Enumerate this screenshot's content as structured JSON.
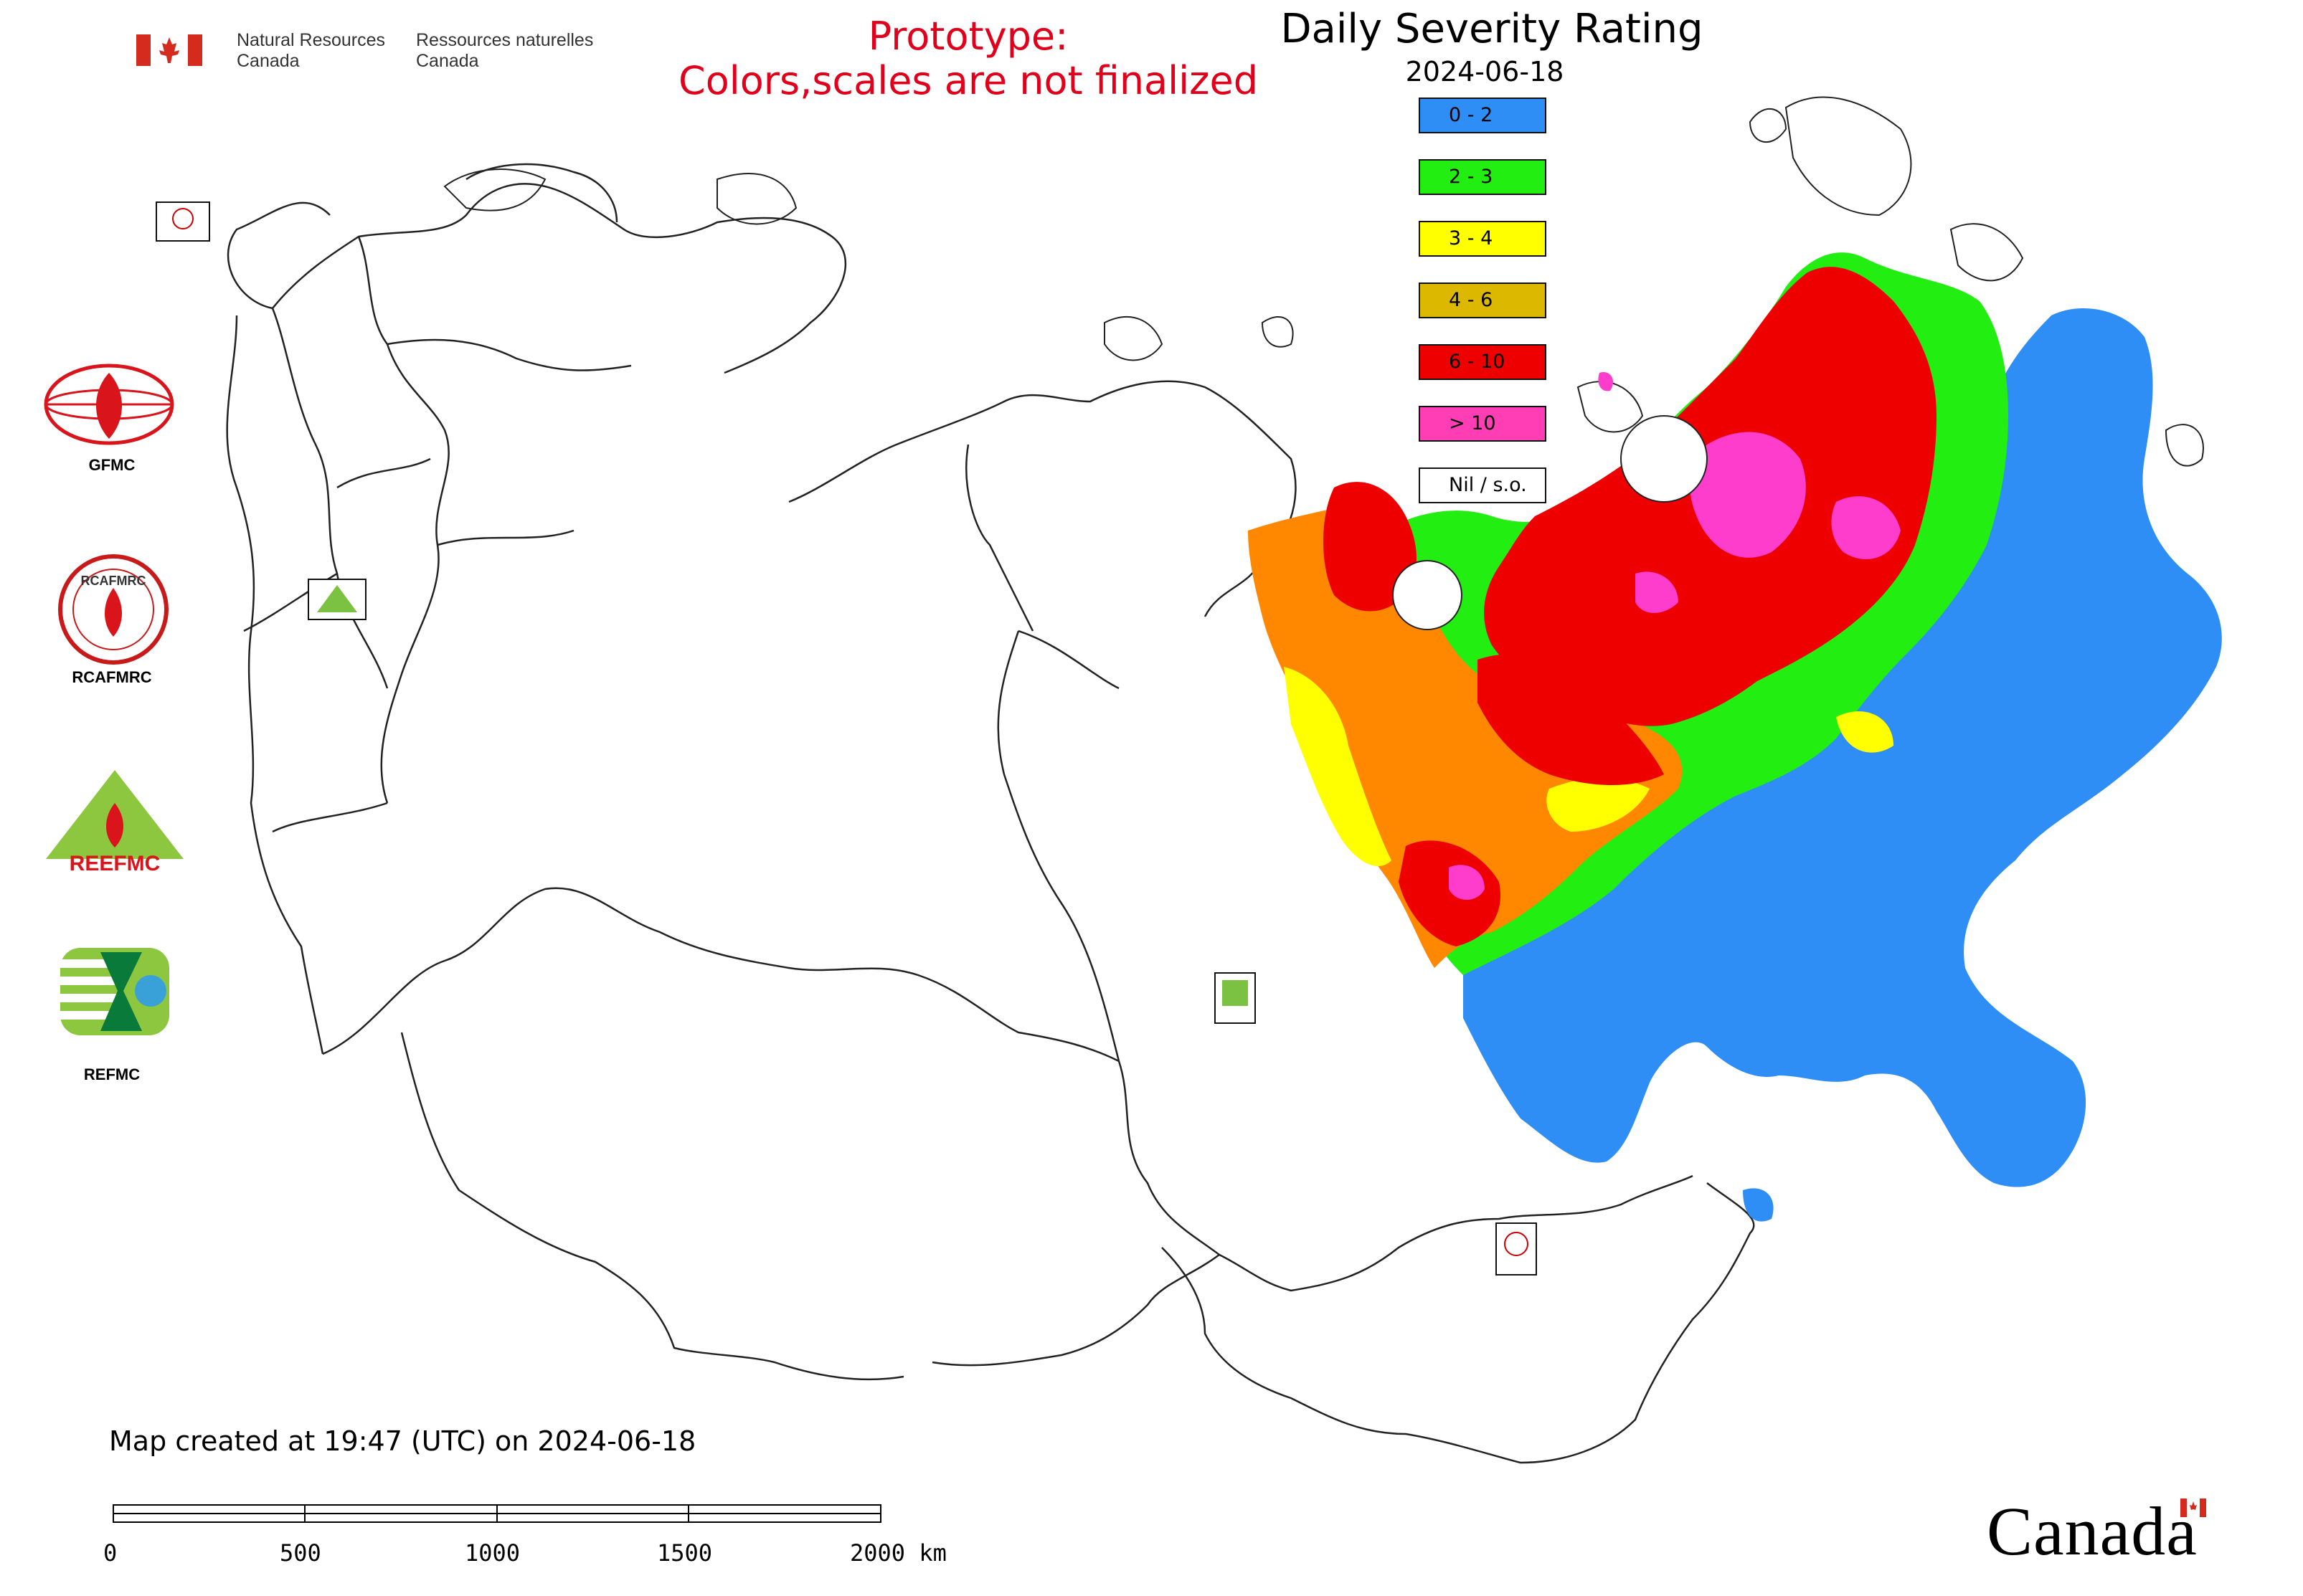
{
  "header": {
    "dept_en": [
      "Natural Resources",
      "Canada"
    ],
    "dept_fr": [
      "Ressources naturelles",
      "Canada"
    ],
    "prototype_line1": "Prototype:",
    "prototype_line2": "Colors,scales are not finalized"
  },
  "map": {
    "title": "Daily Severity Rating",
    "date": "2024-06-18",
    "legend": [
      {
        "label": "0 - 2",
        "color": "#2e8ef5"
      },
      {
        "label": "2 - 3",
        "color": "#22ee11"
      },
      {
        "label": "3 - 4",
        "color": "#ffff00"
      },
      {
        "label": "4 - 6",
        "color": "#ddb800"
      },
      {
        "label": "6 - 10",
        "color": "#ee0000"
      },
      {
        "label": "> 10",
        "color": "#ff3db4"
      },
      {
        "label": "Nil / s.o.",
        "color": "#ffffff"
      }
    ],
    "fill_colors": {
      "orange": "#ff8800",
      "red": "#ee0000",
      "magenta": "#ff3dcc",
      "yellow": "#ffff00",
      "green": "#22ee11",
      "blue": "#2e8ef5"
    }
  },
  "side_logos": [
    {
      "label": "GFMC"
    },
    {
      "label": "RCAFMRC"
    },
    {
      "label": "REFMC"
    }
  ],
  "side_logo_rceefmc_text": "REEFMC",
  "side_logo_rcafmrc_text": "RCAFMRC",
  "footer": {
    "created": "Map created at 19:47 (UTC) on 2024-06-18",
    "scale_ticks": [
      "0",
      "500",
      "1000",
      "1500",
      "2000 km"
    ],
    "wordmark": "Canada"
  }
}
